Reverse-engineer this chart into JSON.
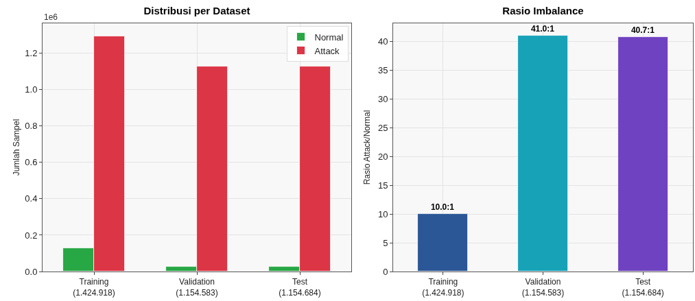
{
  "chart_data": [
    {
      "type": "bar",
      "title": "Distribusi per Dataset",
      "ylabel": "Jumlah Sampel",
      "categories": [
        "Training\n(1.424.918)",
        "Validation\n(1.154.583)",
        "Test\n(1.154.684)"
      ],
      "series": [
        {
          "name": "Normal",
          "color": "#28a745",
          "values": [
            0.13,
            0.028,
            0.028
          ]
        },
        {
          "name": "Attack",
          "color": "#dc3545",
          "values": [
            1.295,
            1.127,
            1.127
          ]
        }
      ],
      "ylim": [
        0,
        1.365
      ],
      "yticks": [
        {
          "value": 0,
          "label": "0.0"
        },
        {
          "value": 0.2,
          "label": "0.2"
        },
        {
          "value": 0.4,
          "label": "0.4"
        },
        {
          "value": 0.6,
          "label": "0.6"
        },
        {
          "value": 0.8,
          "label": "0.8"
        },
        {
          "value": 1,
          "label": "1.0"
        },
        {
          "value": 1.2,
          "label": "1.2"
        }
      ],
      "grid": true,
      "legend": "top right",
      "annotations": [
        "1e6"
      ]
    },
    {
      "type": "bar",
      "title": "Rasio Imbalance",
      "ylabel": "Rasio Attack/Normal",
      "categories": [
        "Training\n(1.424.918)",
        "Validation\n(1.154.583)",
        "Test\n(1.154.684)"
      ],
      "values": [
        10.0,
        41.0,
        40.7
      ],
      "colors": [
        "#2b5797",
        "#17a2b8",
        "#6f42c1"
      ],
      "value_labels": [
        "10.0:1",
        "41.0:1",
        "40.7:1"
      ],
      "ylim": [
        0,
        43.1
      ],
      "yticks": [
        0,
        5,
        10,
        15,
        20,
        25,
        30,
        35,
        40
      ],
      "grid": true
    }
  ]
}
